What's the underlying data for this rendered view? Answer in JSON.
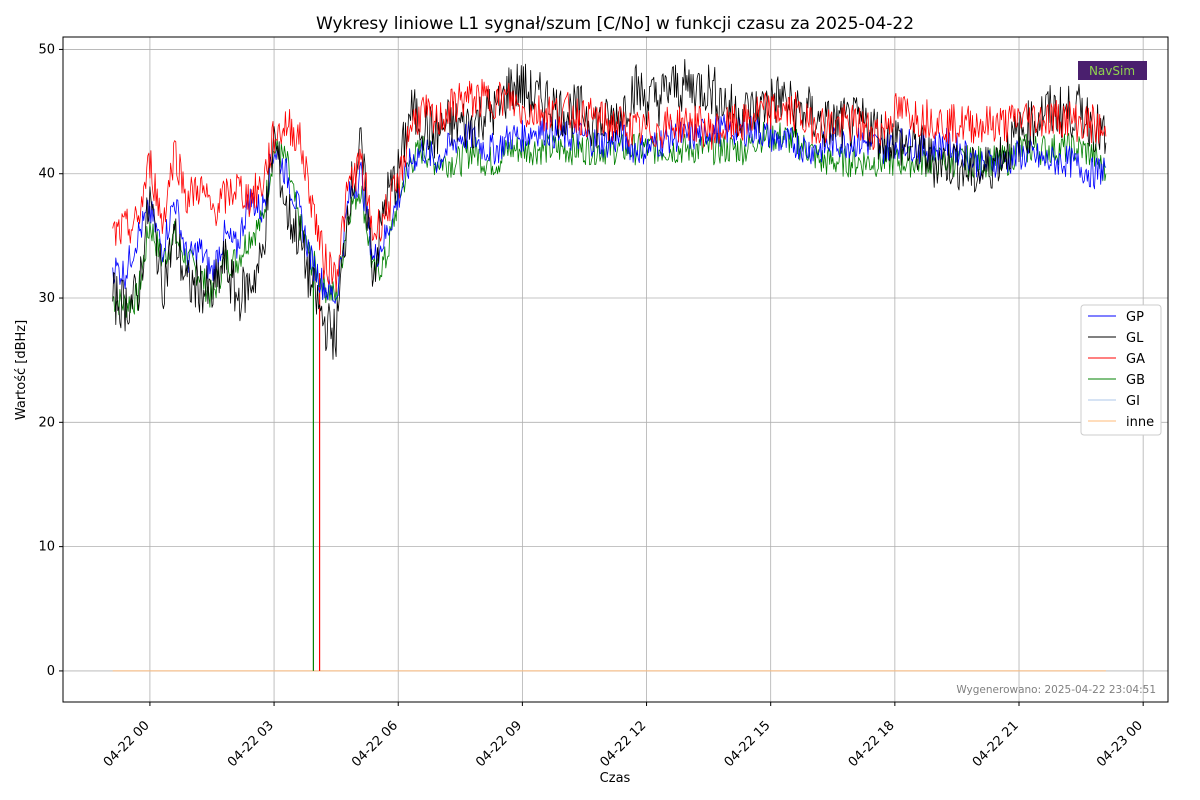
{
  "chart_data": {
    "type": "line",
    "title": "Wykresy liniowe L1 sygnał/szum [C/No] w funkcji czasu za 2025-04-22",
    "xlabel": "Czas",
    "ylabel": "Wartość [dBHz]",
    "x_range_hours": [
      -2.1,
      24.6
    ],
    "ylim": [
      -2.5,
      51
    ],
    "x_ticks": [
      {
        "hours": 0,
        "label": "04-22 00"
      },
      {
        "hours": 3,
        "label": "04-22 03"
      },
      {
        "hours": 6,
        "label": "04-22 06"
      },
      {
        "hours": 9,
        "label": "04-22 09"
      },
      {
        "hours": 12,
        "label": "04-22 12"
      },
      {
        "hours": 15,
        "label": "04-22 15"
      },
      {
        "hours": 18,
        "label": "04-22 18"
      },
      {
        "hours": 21,
        "label": "04-22 21"
      },
      {
        "hours": 24,
        "label": "04-23 00"
      }
    ],
    "y_ticks": [
      0,
      10,
      20,
      30,
      40,
      50
    ],
    "grid": true,
    "legend_position": "right",
    "x_hours": [
      -0.9,
      -0.6,
      -0.3,
      0,
      0.3,
      0.6,
      0.9,
      1.2,
      1.5,
      1.8,
      2.1,
      2.4,
      2.7,
      3,
      3.3,
      3.6,
      3.9,
      4.2,
      4.5,
      4.8,
      5.1,
      5.4,
      5.7,
      6,
      6.3,
      6.6,
      6.9,
      7.2,
      7.5,
      7.8,
      8.1,
      8.4,
      8.7,
      9,
      9.3,
      9.6,
      9.9,
      10.2,
      10.5,
      10.8,
      11.1,
      11.4,
      11.7,
      12,
      12.3,
      12.6,
      12.9,
      13.2,
      13.5,
      13.8,
      14.1,
      14.4,
      14.7,
      15,
      15.3,
      15.6,
      15.9,
      16.2,
      16.5,
      16.8,
      17.1,
      17.4,
      17.7,
      18,
      18.3,
      18.6,
      18.9,
      19.2,
      19.5,
      19.8,
      20.1,
      20.4,
      20.7,
      21,
      21.3,
      21.6,
      21.9,
      22.2,
      22.5,
      22.8,
      23.1
    ],
    "series": [
      {
        "name": "GP",
        "color": "#0000ff",
        "values": [
          32.5,
          32,
          35,
          37,
          34,
          38,
          33,
          34,
          32,
          35,
          34,
          38,
          37,
          42,
          40,
          37,
          33,
          31,
          30,
          38,
          40,
          33,
          35,
          38,
          41,
          42,
          41,
          42,
          43,
          43,
          42,
          42,
          43,
          43,
          43.5,
          43.5,
          43,
          43,
          43,
          42.5,
          42.5,
          43,
          42,
          42,
          42.5,
          43,
          43,
          43,
          43.5,
          43.5,
          43.5,
          43.5,
          43.5,
          43,
          42.5,
          42.5,
          42,
          42,
          42.5,
          42.5,
          42.5,
          42.5,
          42,
          42.5,
          42.5,
          42,
          42,
          42.5,
          42,
          41.5,
          40.5,
          41,
          41,
          41.5,
          41.5,
          41,
          41,
          41,
          40.5,
          40,
          40.5
        ]
      },
      {
        "name": "GL",
        "color": "#000000",
        "values": [
          30,
          29.5,
          30,
          38,
          31,
          35,
          31,
          31,
          30,
          33,
          30,
          31,
          33,
          43,
          37,
          35,
          31,
          28,
          27,
          38,
          42,
          32,
          38,
          40,
          45,
          44,
          43,
          44,
          44,
          44,
          45,
          45,
          47,
          47,
          46,
          46,
          45,
          45,
          45,
          44,
          44,
          45,
          47,
          46,
          46,
          47,
          47,
          47,
          47,
          46,
          45,
          45,
          45,
          46,
          46,
          45,
          45,
          44,
          44,
          44,
          44,
          44,
          43,
          43,
          42,
          42,
          41,
          41,
          41,
          40,
          40,
          41,
          42,
          43,
          44,
          45,
          45,
          45,
          45,
          44,
          42.5
        ]
      },
      {
        "name": "GA",
        "color": "#ff0000",
        "values": [
          35,
          35.5,
          36,
          41,
          36,
          42,
          38,
          39,
          37,
          38,
          39,
          38,
          39,
          43,
          44,
          43,
          38,
          33,
          32,
          39,
          41,
          35,
          37,
          39,
          44,
          45,
          44,
          45,
          46,
          46,
          46,
          46,
          46,
          45,
          45,
          45,
          45,
          45,
          44.5,
          44.5,
          44,
          44,
          43.5,
          43.5,
          43.5,
          44,
          44,
          44,
          43.5,
          43.5,
          44,
          44,
          45,
          45,
          45,
          45,
          44,
          44,
          44,
          44,
          44,
          43.5,
          43.5,
          45,
          45,
          44.5,
          44.5,
          44,
          44,
          44,
          44,
          44,
          44,
          44.5,
          44.5,
          44.5,
          44.5,
          44.5,
          44,
          44,
          43
        ]
      },
      {
        "name": "GB",
        "color": "#008000",
        "values": [
          30,
          29.5,
          30,
          36,
          33,
          35,
          33,
          32,
          30,
          33,
          33,
          35,
          36,
          42,
          41,
          36,
          33,
          31,
          30,
          37,
          39,
          32,
          33,
          38,
          41,
          42,
          41,
          41,
          41,
          42,
          41,
          41,
          42,
          42,
          42,
          42,
          42,
          42,
          42,
          42,
          42,
          42,
          42,
          42,
          42,
          42,
          42,
          42,
          42,
          42,
          42,
          42,
          43,
          43,
          43,
          42.5,
          42,
          41,
          41,
          41,
          41,
          41,
          41,
          41,
          41,
          41,
          41,
          41,
          41,
          41,
          41,
          41,
          41,
          42,
          42,
          42,
          42,
          42,
          42,
          41.5,
          40
        ]
      },
      {
        "name": "GI",
        "color": "#aec7e8",
        "values": [
          0,
          0
        ]
      },
      {
        "name": "inne",
        "color": "#ffbb78",
        "values": [
          0,
          0
        ]
      }
    ],
    "dropout_hours": [
      3.95,
      4.1
    ],
    "annotation": "Wygenerowano: 2025-04-22 23:04:51",
    "logo_text": "NavSim"
  }
}
